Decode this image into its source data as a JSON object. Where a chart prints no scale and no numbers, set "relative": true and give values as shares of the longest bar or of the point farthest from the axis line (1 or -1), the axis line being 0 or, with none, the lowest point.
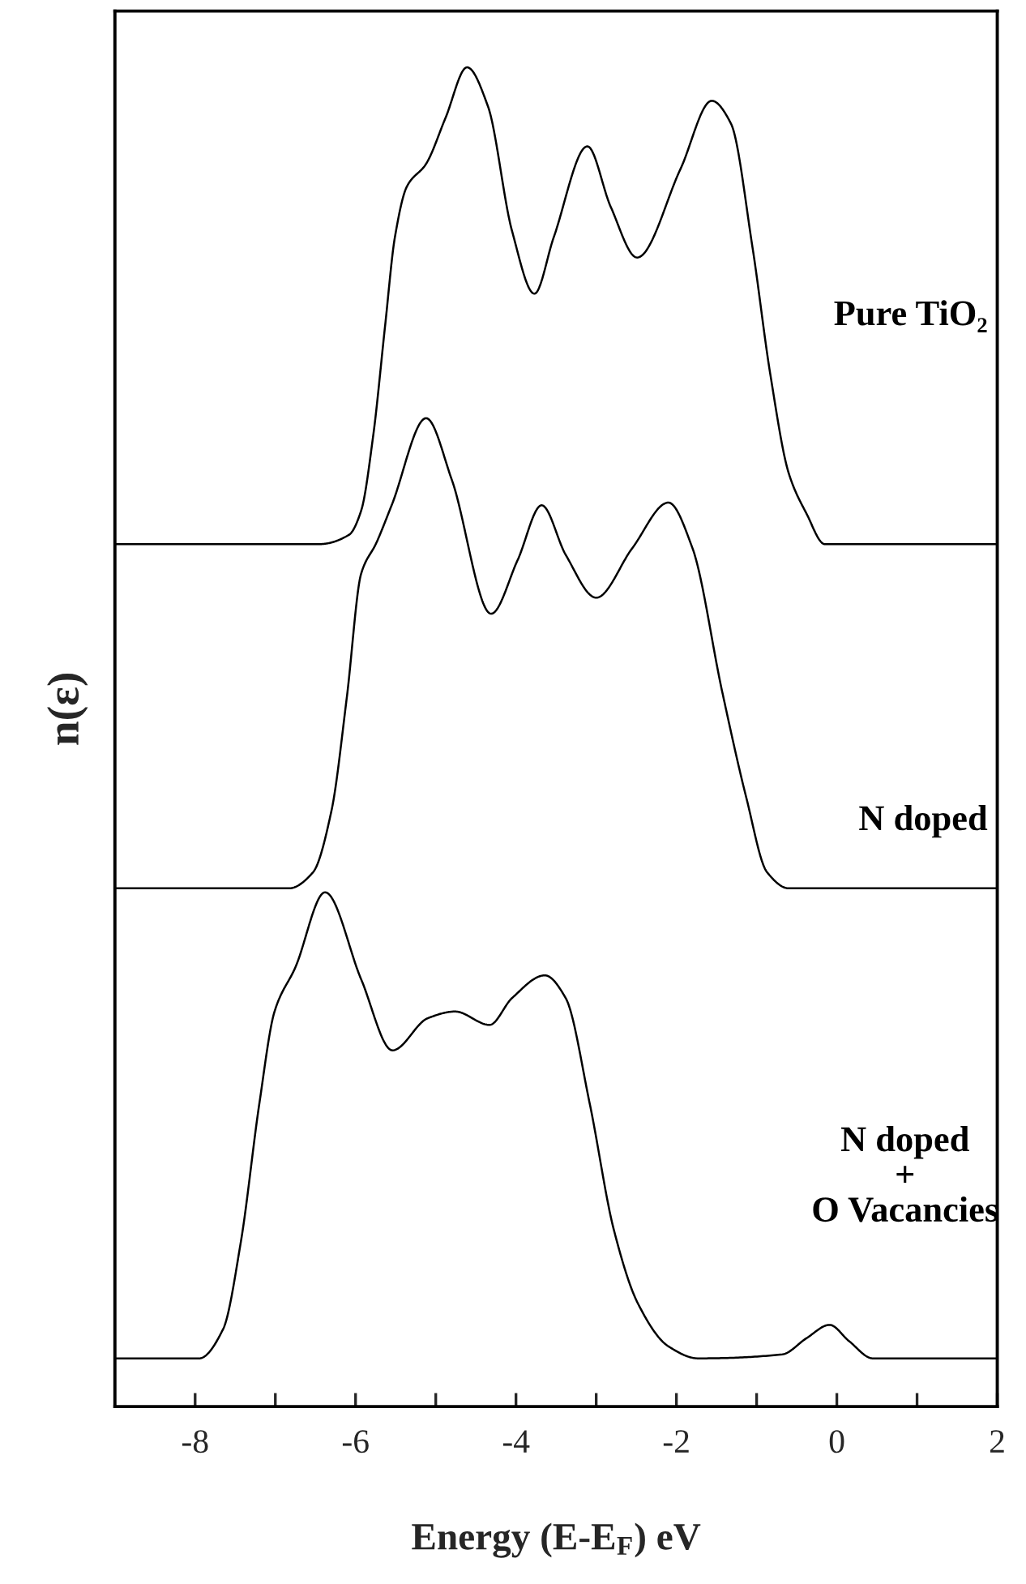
{
  "chart_data": {
    "type": "line",
    "relative": true,
    "xlabel": "Energy (E-E$_{F}$) eV",
    "ylabel": "n(ε)",
    "xlim": [
      -9,
      2
    ],
    "xticks": [
      -8,
      {
        "value": -7,
        "label": null
      },
      -6,
      {
        "value": -5,
        "label": null
      },
      -4,
      {
        "value": -3,
        "label": null
      },
      -2,
      {
        "value": -1,
        "label": null
      },
      0,
      {
        "value": 1,
        "label": null
      },
      2
    ],
    "grid": false,
    "legend": false,
    "marker": "none",
    "line_style": "solid",
    "series": [
      {
        "name": "Pure TiO₂",
        "color": "#000000",
        "x": [
          -9,
          -6.45,
          -6.08,
          -5.93,
          -5.78,
          -5.63,
          -5.51,
          -5.36,
          -5.12,
          -4.88,
          -4.61,
          -4.35,
          -4.05,
          -3.77,
          -3.53,
          -3.11,
          -2.82,
          -2.49,
          -1.95,
          -1.56,
          -1.32,
          -1.05,
          -0.83,
          -0.6,
          -0.38,
          -0.15,
          2
        ],
        "values": [
          0.644,
          0.644,
          0.651,
          0.669,
          0.725,
          0.808,
          0.873,
          0.911,
          0.928,
          0.962,
          1.0,
          0.971,
          0.878,
          0.831,
          0.873,
          0.941,
          0.896,
          0.858,
          0.924,
          0.975,
          0.958,
          0.865,
          0.771,
          0.697,
          0.667,
          0.644,
          0.644
        ]
      },
      {
        "name": "N doped",
        "color": "#000000",
        "x": [
          -9,
          -6.83,
          -6.53,
          -6.3,
          -6.11,
          -5.93,
          -5.74,
          -5.55,
          -5.12,
          -4.8,
          -4.31,
          -3.98,
          -3.68,
          -3.38,
          -3.0,
          -2.55,
          -2.1,
          -1.8,
          -1.43,
          -1.13,
          -0.87,
          -0.6,
          2
        ],
        "values": [
          0.387,
          0.387,
          0.399,
          0.445,
          0.529,
          0.622,
          0.645,
          0.673,
          0.738,
          0.692,
          0.592,
          0.632,
          0.673,
          0.636,
          0.604,
          0.641,
          0.675,
          0.641,
          0.534,
          0.455,
          0.399,
          0.387,
          0.387
        ]
      },
      {
        "name": "N doped\n+\nO Vacancies",
        "color": "#000000",
        "x": [
          -9,
          -7.95,
          -7.65,
          -7.43,
          -7.2,
          -7.01,
          -6.75,
          -6.38,
          -5.93,
          -5.54,
          -5.1,
          -4.76,
          -4.33,
          -4.05,
          -3.64,
          -3.38,
          -3.08,
          -2.78,
          -2.48,
          -2.1,
          -1.73,
          -0.68,
          -0.38,
          -0.09,
          0.15,
          0.45,
          2
        ],
        "values": [
          0.036,
          0.036,
          0.058,
          0.123,
          0.226,
          0.295,
          0.328,
          0.384,
          0.319,
          0.266,
          0.29,
          0.295,
          0.285,
          0.305,
          0.322,
          0.305,
          0.226,
          0.132,
          0.077,
          0.045,
          0.036,
          0.039,
          0.051,
          0.061,
          0.049,
          0.036,
          0.036
        ]
      }
    ]
  }
}
